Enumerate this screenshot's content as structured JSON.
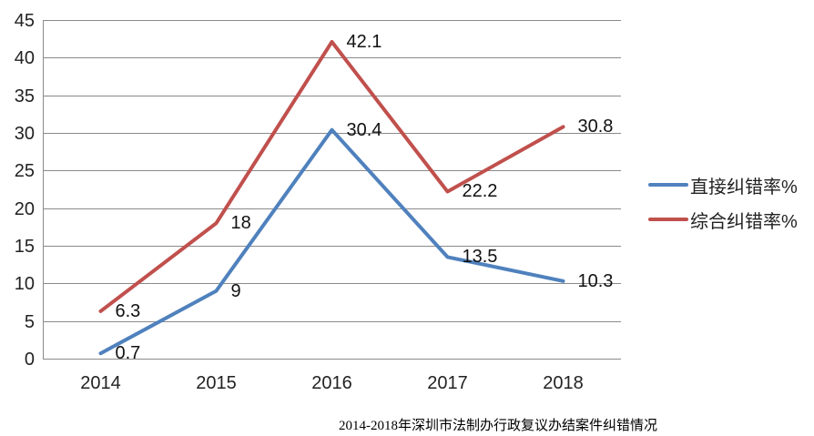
{
  "chart_data": {
    "type": "line",
    "title": "2014-2018年深圳市法制办行政复议办结案件纠错情况",
    "categories": [
      "2014",
      "2015",
      "2016",
      "2017",
      "2018"
    ],
    "series": [
      {
        "name": "直接纠错率%",
        "values": [
          0.7,
          9,
          30.4,
          13.5,
          10.3
        ],
        "color": "#4F81BD"
      },
      {
        "name": "综合纠错率%",
        "values": [
          6.3,
          18,
          42.1,
          22.2,
          30.8
        ],
        "color": "#C0504D"
      }
    ],
    "ylim": [
      0,
      45
    ],
    "ytick_step": 5,
    "xlabel": "",
    "ylabel": "",
    "grid": true,
    "legend_position": "right",
    "data_labels": true
  },
  "colors": {
    "gridline": "#8a8a8a",
    "axis": "#8a8a8a",
    "tick_text": "#222222",
    "label_text": "#111111",
    "background": "#ffffff"
  }
}
